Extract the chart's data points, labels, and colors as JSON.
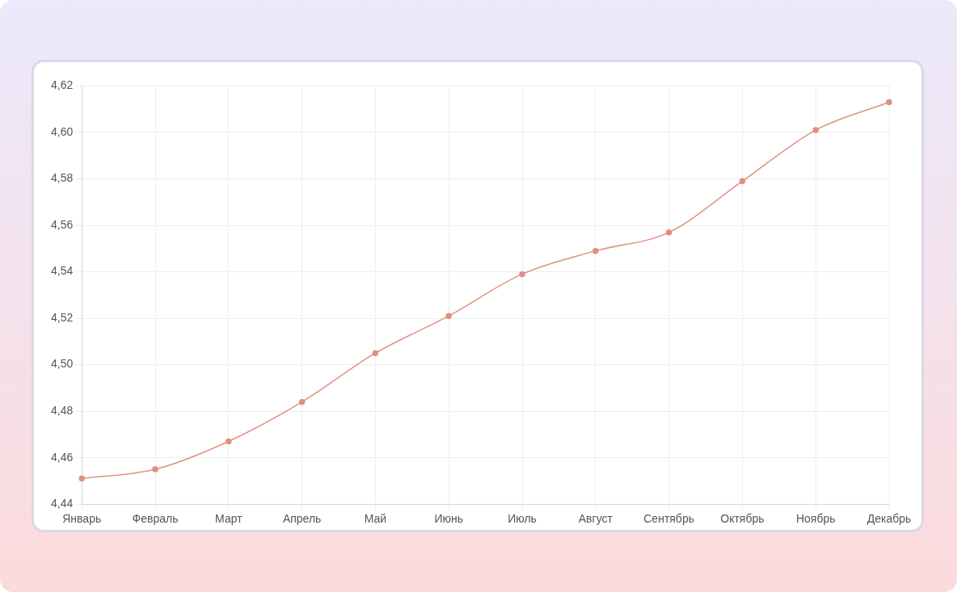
{
  "chart_data": {
    "type": "line",
    "categories": [
      "Январь",
      "Февраль",
      "Март",
      "Апрель",
      "Май",
      "Июнь",
      "Июль",
      "Август",
      "Сентябрь",
      "Октябрь",
      "Ноябрь",
      "Декабрь"
    ],
    "series": [
      {
        "color": "#e0907e",
        "values": [
          4.451,
          4.455,
          4.467,
          4.484,
          4.505,
          4.521,
          4.539,
          4.549,
          4.557,
          4.579,
          4.601,
          4.613
        ]
      }
    ],
    "ylim": [
      4.44,
      4.62
    ],
    "yticks": [
      {
        "value": 4.44,
        "label": "4,44"
      },
      {
        "value": 4.46,
        "label": "4,46"
      },
      {
        "value": 4.48,
        "label": "4,48"
      },
      {
        "value": 4.5,
        "label": "4,50"
      },
      {
        "value": 4.52,
        "label": "4,52"
      },
      {
        "value": 4.54,
        "label": "4,54"
      },
      {
        "value": 4.56,
        "label": "4,56"
      },
      {
        "value": 4.58,
        "label": "4,58"
      },
      {
        "value": 4.6,
        "label": "4,60"
      },
      {
        "value": 4.62,
        "label": "4,62"
      }
    ],
    "grid": true,
    "marker": "circle",
    "line_style": "solid",
    "legend": false
  }
}
